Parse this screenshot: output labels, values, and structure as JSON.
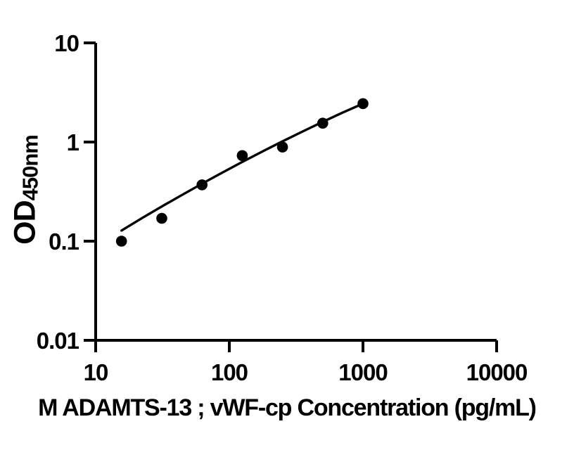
{
  "figure": {
    "background_color": "#ffffff",
    "ink_color": "#000000"
  },
  "chart_data": {
    "type": "scatter",
    "title": "",
    "xlabel": "M ADAMTS-13 ; vWF-cp Concentration (pg/mL)",
    "ylabel_main": "OD",
    "ylabel_sub": "450nm",
    "x_scale": "log",
    "y_scale": "log",
    "xlim": [
      10,
      10000
    ],
    "ylim": [
      0.01,
      10
    ],
    "grid": false,
    "legend": "none",
    "x_ticks": [
      {
        "value": 10,
        "label": "10"
      },
      {
        "value": 100,
        "label": "100"
      },
      {
        "value": 1000,
        "label": "1000"
      },
      {
        "value": 10000,
        "label": "10000"
      }
    ],
    "y_ticks": [
      {
        "value": 10,
        "label": "10"
      },
      {
        "value": 1,
        "label": "1"
      },
      {
        "value": 0.1,
        "label": "0.1"
      },
      {
        "value": 0.01,
        "label": "0.01"
      }
    ],
    "series": [
      {
        "name": "standard-points",
        "kind": "scatter",
        "marker": "filled-circle",
        "marker_radius_px": 7.8,
        "color": "#000000",
        "points": [
          [
            15.6,
            0.1
          ],
          [
            31.25,
            0.17
          ],
          [
            62.5,
            0.37
          ],
          [
            125,
            0.73
          ],
          [
            250,
            0.89
          ],
          [
            500,
            1.55
          ],
          [
            1000,
            2.44
          ]
        ]
      },
      {
        "name": "fit-curve",
        "kind": "line",
        "color": "#000000",
        "stroke_width_px": 3.4,
        "points": [
          [
            15.6,
            0.128
          ],
          [
            22.4,
            0.172
          ],
          [
            31.6,
            0.226
          ],
          [
            44.7,
            0.295
          ],
          [
            63.1,
            0.383
          ],
          [
            89.1,
            0.494
          ],
          [
            125.9,
            0.633
          ],
          [
            177.8,
            0.806
          ],
          [
            251.2,
            1.02
          ],
          [
            354.8,
            1.28
          ],
          [
            501.2,
            1.6
          ],
          [
            707.9,
            1.99
          ],
          [
            1000,
            2.44
          ]
        ]
      }
    ]
  }
}
